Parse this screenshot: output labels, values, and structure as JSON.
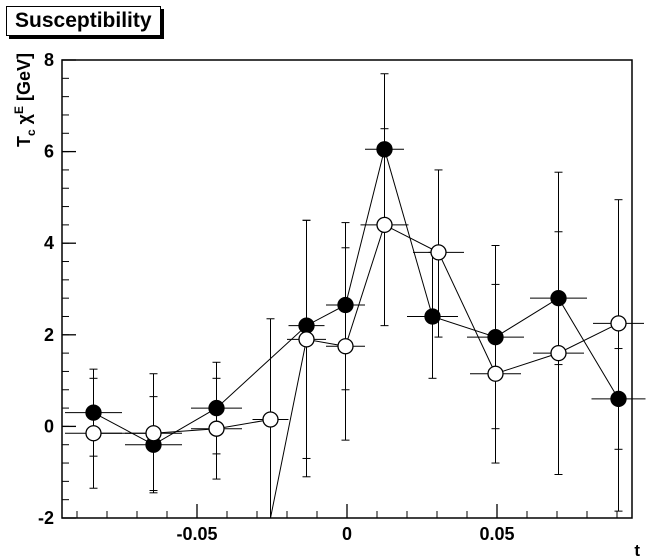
{
  "chart_data": {
    "type": "scatter",
    "title": "Susceptibility",
    "ylabel": "T_c χ^E [GeV]",
    "xlabel": "t",
    "xlim": [
      -0.095,
      0.095
    ],
    "ylim": [
      -2,
      8
    ],
    "x_ticks": [
      -0.05,
      0,
      0.05
    ],
    "x_tick_labels": [
      "-0.05",
      "0",
      "0.05"
    ],
    "y_ticks": [
      -2,
      0,
      2,
      4,
      6,
      8
    ],
    "y_tick_labels": [
      "-2",
      "0",
      "2",
      "4",
      "6",
      "8"
    ],
    "grid": false,
    "series": [
      {
        "marker": "filled-circle",
        "color": "#000000",
        "points": [
          {
            "x": -0.0845,
            "y": 0.3,
            "xerr": 0.0095,
            "ylo": -0.65,
            "yhi": 1.25
          },
          {
            "x": -0.0645,
            "y": -0.4,
            "xerr": 0.0095,
            "ylo": -1.4,
            "yhi": 0.65
          },
          {
            "x": -0.0435,
            "y": 0.4,
            "xerr": 0.0085,
            "ylo": -0.6,
            "yhi": 1.4
          },
          {
            "x": -0.0135,
            "y": 2.2,
            "xerr": 0.006,
            "ylo": -0.7,
            "yhi": 4.5
          },
          {
            "x": -0.0005,
            "y": 2.65,
            "xerr": 0.0065,
            "ylo": 0.8,
            "yhi": 4.45
          },
          {
            "x": 0.0125,
            "y": 6.05,
            "xerr": 0.0065,
            "ylo": 4.4,
            "yhi": 7.7
          },
          {
            "x": 0.0285,
            "y": 2.4,
            "xerr": 0.0085,
            "ylo": 1.05,
            "yhi": 3.8
          },
          {
            "x": 0.0495,
            "y": 1.95,
            "xerr": 0.0095,
            "ylo": -0.05,
            "yhi": 3.95
          },
          {
            "x": 0.0705,
            "y": 2.8,
            "xerr": 0.0095,
            "ylo": 1.35,
            "yhi": 4.25
          },
          {
            "x": 0.0905,
            "y": 0.6,
            "xerr": 0.009,
            "ylo": -0.5,
            "yhi": 1.7
          }
        ]
      },
      {
        "marker": "open-circle",
        "color": "#000000",
        "points": [
          {
            "x": -0.0845,
            "y": -0.15,
            "xerr": 0.0095,
            "ylo": -1.35,
            "yhi": 1.05
          },
          {
            "x": -0.0645,
            "y": -0.15,
            "xerr": 0.0095,
            "ylo": -1.45,
            "yhi": 1.15
          },
          {
            "x": -0.0435,
            "y": -0.05,
            "xerr": 0.0085,
            "ylo": -1.15,
            "yhi": 1.05
          },
          {
            "x": -0.0255,
            "y": 0.15,
            "xerr": 0.006,
            "ylo": -2.0,
            "yhi": 2.35
          },
          {
            "x": -0.0255,
            "y": -2.0,
            "xerr": 0,
            "ylo": -2.0,
            "yhi": -2.0
          },
          {
            "x": -0.0135,
            "y": 1.9,
            "xerr": 0.0065,
            "ylo": -1.1,
            "yhi": 4.5
          },
          {
            "x": -0.0005,
            "y": 1.75,
            "xerr": 0.0065,
            "ylo": -0.3,
            "yhi": 3.9
          },
          {
            "x": 0.0125,
            "y": 4.4,
            "xerr": 0.008,
            "ylo": 2.2,
            "yhi": 6.5
          },
          {
            "x": 0.0305,
            "y": 3.8,
            "xerr": 0.0085,
            "ylo": 1.95,
            "yhi": 5.6
          },
          {
            "x": 0.0495,
            "y": 1.15,
            "xerr": 0.0085,
            "ylo": -0.8,
            "yhi": 3.1
          },
          {
            "x": 0.0705,
            "y": 1.6,
            "xerr": 0.0085,
            "ylo": -1.05,
            "yhi": 5.55
          },
          {
            "x": 0.0905,
            "y": 2.25,
            "xerr": 0.0085,
            "ylo": -1.85,
            "yhi": 4.95
          }
        ]
      }
    ]
  }
}
